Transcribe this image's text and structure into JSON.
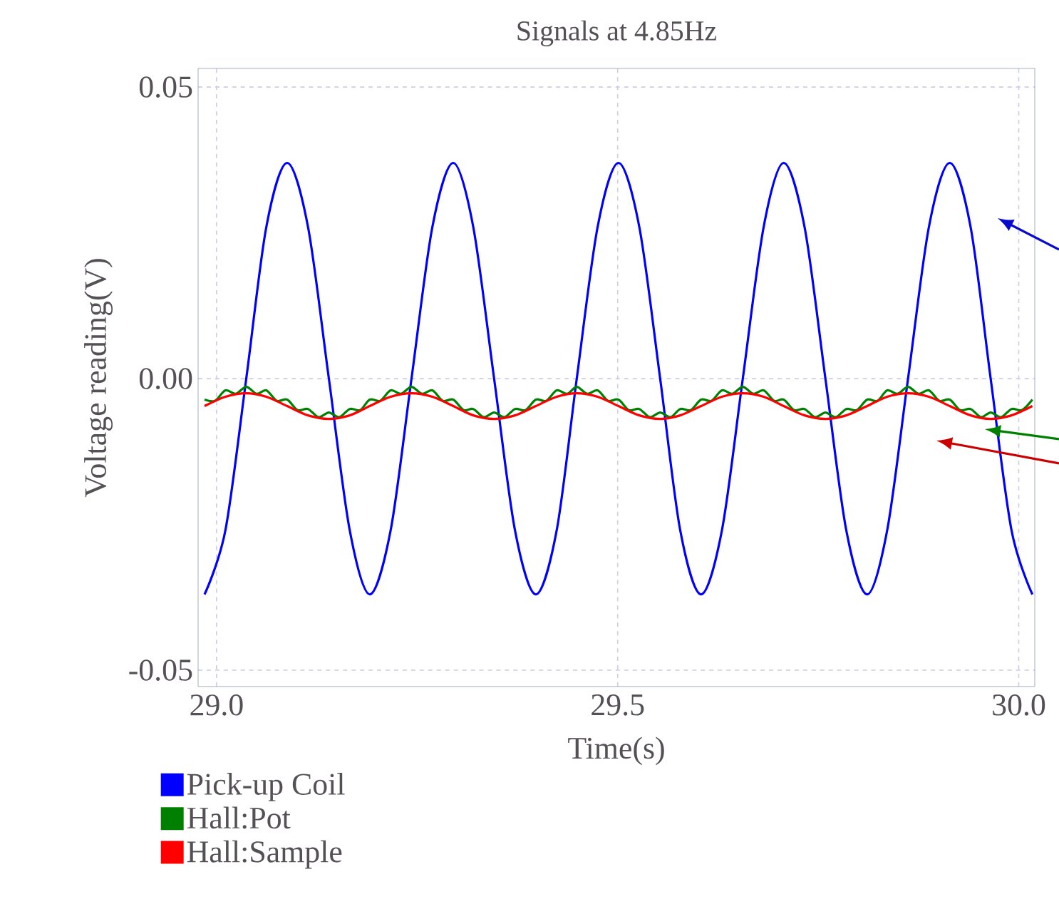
{
  "chart_data": {
    "type": "line",
    "title": "Signals at 4.85Hz",
    "xlabel": "Time(s)",
    "ylabel": "Voltage reading(V)",
    "x": [
      28.985,
      29.011,
      29.037,
      29.062,
      29.088,
      29.114,
      29.14,
      29.166,
      29.191,
      29.217,
      29.243,
      29.269,
      29.295,
      29.32,
      29.346,
      29.372,
      29.398,
      29.424,
      29.449,
      29.475,
      29.501,
      29.527,
      29.553,
      29.578,
      29.604,
      29.63,
      29.656,
      29.682,
      29.707,
      29.733,
      29.759,
      29.785,
      29.811,
      29.836,
      29.862,
      29.888,
      29.914,
      29.94,
      29.965,
      29.991,
      30.017
    ],
    "series": [
      {
        "name": "Pick-up Coil",
        "color": "#0000ff",
        "values": [
          -0.037,
          -0.026,
          0,
          0.026,
          0.037,
          0.026,
          0,
          -0.026,
          -0.037,
          -0.026,
          0,
          0.026,
          0.037,
          0.026,
          0,
          -0.026,
          -0.037,
          -0.026,
          0,
          0.026,
          0.037,
          0.026,
          0,
          -0.026,
          -0.037,
          -0.026,
          0,
          0.026,
          0.037,
          0.026,
          0,
          -0.026,
          -0.037,
          -0.026,
          0,
          0.026,
          0.037,
          0.026,
          0,
          -0.026,
          -0.037
        ]
      },
      {
        "name": "Hall:Pot",
        "color": "#008000",
        "x": [
          28.985,
          28.998,
          29.011,
          29.024,
          29.037,
          29.05,
          29.062,
          29.075,
          29.088,
          29.101,
          29.114,
          29.127,
          29.14,
          29.153,
          29.166,
          29.179,
          29.191,
          29.204,
          29.217,
          29.23,
          29.243,
          29.256,
          29.269,
          29.282,
          29.295,
          29.308,
          29.32,
          29.333,
          29.346,
          29.359,
          29.372,
          29.385,
          29.398,
          29.411,
          29.424,
          29.437,
          29.449,
          29.462,
          29.475,
          29.488,
          29.501,
          29.514,
          29.527,
          29.54,
          29.553,
          29.566,
          29.578,
          29.591,
          29.604,
          29.617,
          29.63,
          29.643,
          29.656,
          29.669,
          29.682,
          29.695,
          29.707,
          29.72,
          29.733,
          29.746,
          29.759,
          29.772,
          29.785,
          29.798,
          29.811,
          29.824,
          29.836,
          29.849,
          29.862,
          29.875,
          29.888,
          29.901,
          29.914,
          29.927,
          29.94,
          29.953,
          29.965,
          29.978,
          29.991,
          30.004,
          30.017
        ],
        "values": [
          -0.0036,
          -0.0038,
          -0.002,
          -0.0026,
          -0.0014,
          -0.0026,
          -0.002,
          -0.0038,
          -0.0036,
          -0.0054,
          -0.0052,
          -0.0066,
          -0.0058,
          -0.0066,
          -0.0052,
          -0.0054,
          -0.0036,
          -0.0038,
          -0.002,
          -0.0026,
          -0.0014,
          -0.0026,
          -0.002,
          -0.0038,
          -0.0036,
          -0.0054,
          -0.0052,
          -0.0066,
          -0.0058,
          -0.0066,
          -0.0052,
          -0.0054,
          -0.0036,
          -0.0038,
          -0.002,
          -0.0026,
          -0.0014,
          -0.0026,
          -0.002,
          -0.0038,
          -0.0036,
          -0.0054,
          -0.0052,
          -0.0066,
          -0.0058,
          -0.0066,
          -0.0052,
          -0.0054,
          -0.0036,
          -0.0038,
          -0.002,
          -0.0026,
          -0.0014,
          -0.0026,
          -0.002,
          -0.0038,
          -0.0036,
          -0.0054,
          -0.0052,
          -0.0066,
          -0.0058,
          -0.0066,
          -0.0052,
          -0.0054,
          -0.0036,
          -0.0038,
          -0.002,
          -0.0026,
          -0.0014,
          -0.0026,
          -0.002,
          -0.0038,
          -0.0036,
          -0.0054,
          -0.0052,
          -0.0066,
          -0.0058,
          -0.0066,
          -0.0052,
          -0.0054,
          -0.0036
        ]
      },
      {
        "name": "Hall:Sample",
        "color": "#ff0000",
        "values": [
          -0.0047,
          -0.0031,
          -0.0025,
          -0.0031,
          -0.0047,
          -0.0063,
          -0.0069,
          -0.0063,
          -0.0047,
          -0.0031,
          -0.0025,
          -0.0031,
          -0.0047,
          -0.0063,
          -0.0069,
          -0.0063,
          -0.0047,
          -0.0031,
          -0.0025,
          -0.0031,
          -0.0047,
          -0.0063,
          -0.0069,
          -0.0063,
          -0.0047,
          -0.0031,
          -0.0025,
          -0.0031,
          -0.0047,
          -0.0063,
          -0.0069,
          -0.0063,
          -0.0047,
          -0.0031,
          -0.0025,
          -0.0031,
          -0.0047,
          -0.0063,
          -0.0069,
          -0.0063,
          -0.0047
        ]
      }
    ],
    "xlim": [
      28.977,
      30.02
    ],
    "ylim": [
      -0.0528,
      0.0532
    ],
    "xticks": [
      {
        "value": 29,
        "label": "29.0"
      },
      {
        "value": 29.5,
        "label": "29.5"
      },
      {
        "value": 30,
        "label": "30.0"
      }
    ],
    "yticks": [
      -0.05,
      {
        "value": 0,
        "label": "0.00"
      },
      0.05
    ],
    "grid": true,
    "legend": "bottom left",
    "marker": "none",
    "line_style": "solid"
  }
}
